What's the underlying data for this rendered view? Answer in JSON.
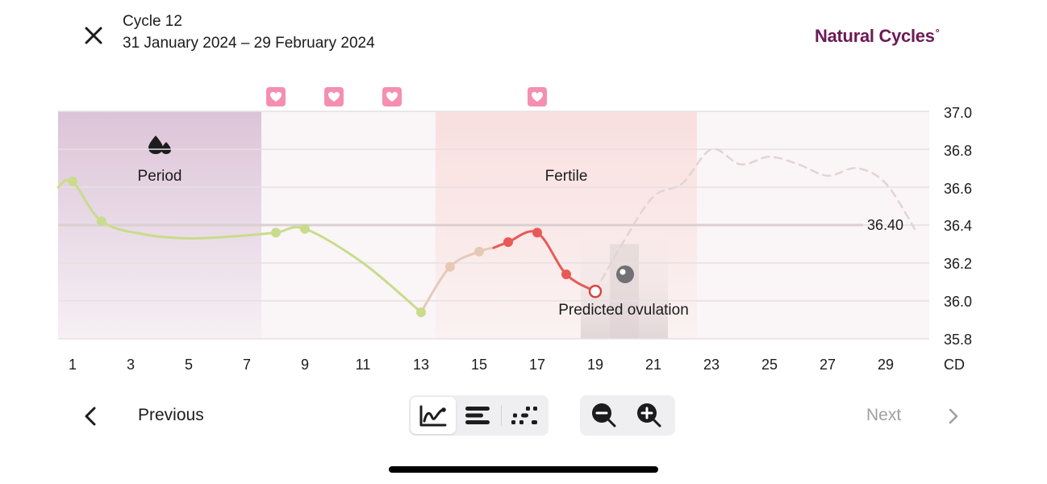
{
  "header": {
    "close_icon": "close-icon",
    "cycle_title": "Cycle 12",
    "cycle_dates": "31 January 2024 – 29 February 2024",
    "brand_name": "Natural Cycles",
    "brand_mark": "°",
    "brand_color": "#6c1a55"
  },
  "chart_data": {
    "type": "line",
    "x_axis": {
      "label": "CD",
      "min": 1,
      "max": 30,
      "ticks": [
        1,
        3,
        5,
        7,
        9,
        11,
        13,
        15,
        17,
        19,
        21,
        23,
        25,
        27,
        29
      ]
    },
    "y_axis": {
      "min": 35.8,
      "max": 37.0,
      "ticks": [
        "37.0",
        "36.8",
        "36.6",
        "36.4",
        "36.2",
        "36.0",
        "35.8"
      ]
    },
    "coverline": {
      "value": 36.4,
      "label": "36.40"
    },
    "bands": [
      {
        "label": "Period",
        "icon": "drops-icon",
        "start_day": 1,
        "end_day": 7.5,
        "color": "#dcc4d8"
      },
      {
        "label": "Fertile",
        "start_day": 13.5,
        "end_day": 22.5,
        "color": "#f8e0e0"
      }
    ],
    "ovulation": {
      "label": "Predicted ovulation",
      "start_day": 18.5,
      "end_day": 21.5,
      "marker_day": 20,
      "marker_value": 36.14
    },
    "intercourse_days": [
      8,
      10,
      12,
      17
    ],
    "series": [
      {
        "name": "Low (green)",
        "style": "solid",
        "color": "#c8dc8c",
        "points": [
          [
            0.5,
            36.6
          ],
          [
            1,
            36.63
          ],
          [
            2,
            36.42
          ],
          [
            3.5,
            36.35
          ],
          [
            5,
            36.33
          ],
          [
            6.5,
            36.34
          ],
          [
            8,
            36.36
          ],
          [
            9,
            36.38
          ],
          [
            11,
            36.2
          ],
          [
            13,
            35.94
          ]
        ]
      },
      {
        "name": "Rising (beige)",
        "style": "solid",
        "color": "#e8c9b8",
        "points": [
          [
            13,
            35.94
          ],
          [
            14,
            36.18
          ],
          [
            15,
            36.26
          ],
          [
            15.5,
            36.28
          ]
        ]
      },
      {
        "name": "Fertile (red)",
        "style": "solid",
        "color": "#e85a55",
        "points": [
          [
            15.5,
            36.28
          ],
          [
            16,
            36.31
          ],
          [
            17,
            36.36
          ],
          [
            18,
            36.14
          ],
          [
            19,
            36.05
          ]
        ]
      },
      {
        "name": "Predicted",
        "style": "dashed",
        "color": "#e2d4d6",
        "points": [
          [
            19,
            36.05
          ],
          [
            20,
            36.32
          ],
          [
            21,
            36.55
          ],
          [
            22,
            36.62
          ],
          [
            23,
            36.8
          ],
          [
            24,
            36.72
          ],
          [
            25,
            36.76
          ],
          [
            26,
            36.72
          ],
          [
            27,
            36.66
          ],
          [
            28,
            36.7
          ],
          [
            29,
            36.62
          ],
          [
            30,
            36.38
          ]
        ]
      }
    ],
    "measured_points": [
      {
        "day": 1,
        "value": 36.63,
        "color": "#c8dc8c"
      },
      {
        "day": 2,
        "value": 36.42,
        "color": "#c8dc8c"
      },
      {
        "day": 8,
        "value": 36.36,
        "color": "#c8dc8c"
      },
      {
        "day": 9,
        "value": 36.38,
        "color": "#c8dc8c"
      },
      {
        "day": 13,
        "value": 35.94,
        "color": "#c8dc8c"
      },
      {
        "day": 14,
        "value": 36.18,
        "color": "#e6c9b5"
      },
      {
        "day": 15,
        "value": 36.26,
        "color": "#e6c9b5"
      },
      {
        "day": 16,
        "value": 36.31,
        "color": "#e85a55"
      },
      {
        "day": 17,
        "value": 36.36,
        "color": "#e85a55"
      },
      {
        "day": 18,
        "value": 36.14,
        "color": "#e85a55"
      }
    ],
    "last_point": {
      "day": 19,
      "value": 36.05,
      "style": "hollow",
      "color": "#d9453f"
    }
  },
  "nav": {
    "previous_icon": "chevron-left-icon",
    "previous_label": "Previous",
    "next_label": "Next",
    "next_icon": "chevron-right-icon"
  },
  "view_toggle": {
    "options": [
      {
        "icon": "graph-view-icon",
        "active": true
      },
      {
        "icon": "bar-view-icon",
        "active": false
      },
      {
        "icon": "dots-view-icon",
        "active": false
      }
    ]
  },
  "zoom": {
    "zoom_out_icon": "zoom-out-icon",
    "zoom_in_icon": "zoom-in-icon"
  }
}
